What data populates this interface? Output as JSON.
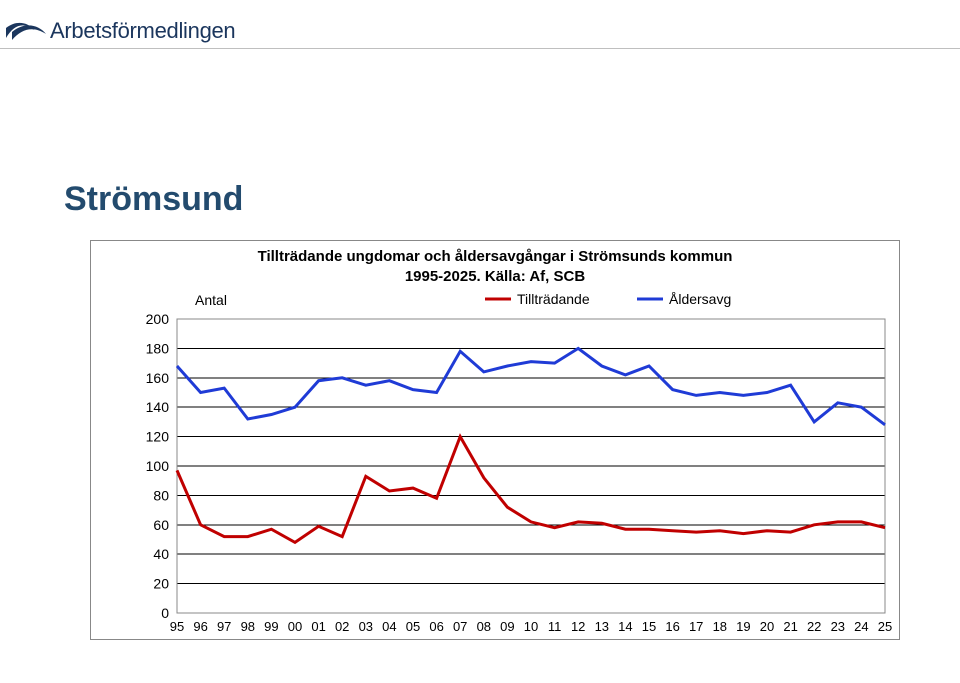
{
  "brand": {
    "name": "Arbetsförmedlingen",
    "logo_color": "#1b365d"
  },
  "page_title": "Strömsund",
  "chart": {
    "type": "line",
    "title_line1": "Tillträdande ungdomar och åldersavgångar i Strömsunds kommun",
    "title_line2": "1995-2025. Källa: Af, SCB",
    "axis_label": "Antal",
    "ylim": [
      0,
      200
    ],
    "ytick_step": 20,
    "background_color": "#ffffff",
    "grid_color": "#000000",
    "border_color": "#888888",
    "categories": [
      "95",
      "96",
      "97",
      "98",
      "99",
      "00",
      "01",
      "02",
      "03",
      "04",
      "05",
      "06",
      "07",
      "08",
      "09",
      "10",
      "11",
      "12",
      "13",
      "14",
      "15",
      "16",
      "17",
      "18",
      "19",
      "20",
      "21",
      "22",
      "23",
      "24",
      "25"
    ],
    "legend": {
      "items": [
        {
          "label": "Tillträdande",
          "color": "#c00000"
        },
        {
          "label": "Åldersavg",
          "color": "#1f3bd6"
        }
      ],
      "line_width": 3,
      "fontsize": 14
    },
    "series": [
      {
        "name": "Tillträdande",
        "color": "#c00000",
        "values": [
          97,
          60,
          52,
          52,
          57,
          48,
          59,
          52,
          93,
          83,
          85,
          78,
          120,
          92,
          72,
          62,
          58,
          62,
          61,
          57,
          57,
          56,
          55,
          56,
          54,
          56,
          55,
          60,
          62,
          62,
          58
        ]
      },
      {
        "name": "Åldersavg",
        "color": "#1f3bd6",
        "values": [
          168,
          150,
          153,
          132,
          135,
          140,
          158,
          160,
          155,
          158,
          152,
          150,
          178,
          164,
          168,
          171,
          170,
          180,
          168,
          162,
          168,
          152,
          148,
          150,
          148,
          150,
          155,
          130,
          143,
          140,
          128
        ]
      }
    ],
    "title_fontsize": 15,
    "label_fontsize": 14,
    "tick_fontsize_y": 14,
    "tick_fontsize_x": 13,
    "line_width": 3
  }
}
